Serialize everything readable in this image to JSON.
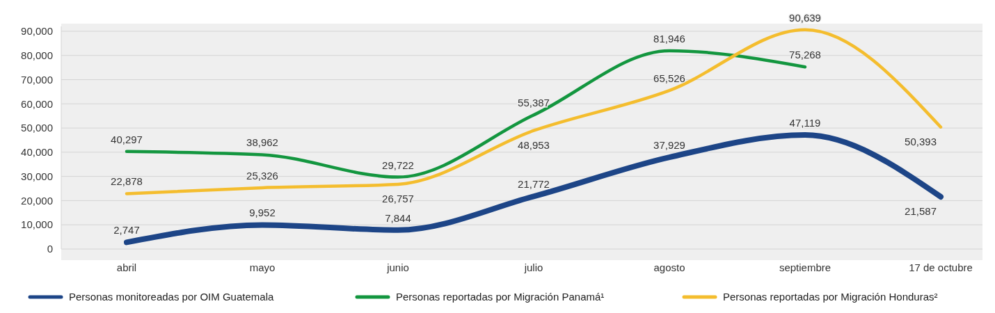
{
  "chart_data": {
    "type": "line",
    "categories": [
      "abril",
      "mayo",
      "junio",
      "julio",
      "agosto",
      "septiembre",
      "17 de octubre"
    ],
    "series": [
      {
        "name": "Personas monitoreadas por OIM Guatemala",
        "color": "#1d4587",
        "values": [
          2747,
          9952,
          7844,
          21772,
          37929,
          47119,
          21587
        ],
        "value_labels": [
          "2,747",
          "9,952",
          "7,844",
          "21,772",
          "37,929",
          "47,119",
          "21,587"
        ]
      },
      {
        "name": "Personas reportadas por Migración Panamá¹",
        "color": "#13963f",
        "values": [
          40297,
          38962,
          29722,
          55387,
          81946,
          75268,
          null
        ],
        "value_labels": [
          "40,297",
          "38,962",
          "29,722",
          "55,387",
          "81,946",
          "75,268",
          null
        ]
      },
      {
        "name": "Personas reportadas por Migración Honduras²",
        "color": "#f4bd2e",
        "values": [
          22878,
          25326,
          26757,
          48953,
          65526,
          90639,
          50393
        ],
        "value_labels": [
          "22,878",
          "25,326",
          "26,757",
          "48,953",
          "65,526",
          "90,639",
          "50,393"
        ]
      }
    ],
    "ylim": [
      0,
      92000
    ],
    "yticks": [
      {
        "value": 0,
        "label": "0"
      },
      {
        "value": 10000,
        "label": "10,000"
      },
      {
        "value": 20000,
        "label": "20,000"
      },
      {
        "value": 30000,
        "label": "30,000"
      },
      {
        "value": 40000,
        "label": "40,000"
      },
      {
        "value": 50000,
        "label": "50,000"
      },
      {
        "value": 60000,
        "label": "60,000"
      },
      {
        "value": 70000,
        "label": "70,000"
      },
      {
        "value": 80000,
        "label": "80,000"
      },
      {
        "value": 90000,
        "label": "90,000"
      }
    ],
    "grid": "y",
    "legend": "bottom",
    "marker": "none",
    "line_style": "solid"
  }
}
